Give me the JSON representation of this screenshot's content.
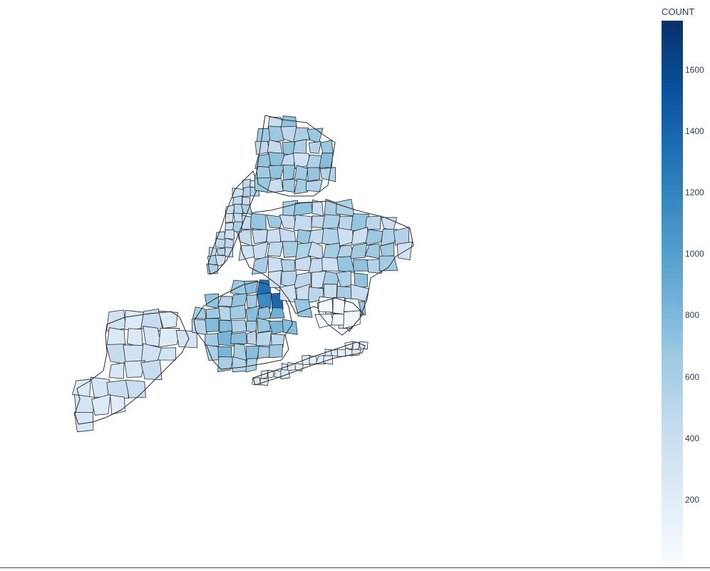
{
  "colorbar": {
    "title": "COUNT",
    "ticks": [
      {
        "label": "1600",
        "value": 1600
      },
      {
        "label": "1400",
        "value": 1400
      },
      {
        "label": "1200",
        "value": 1200
      },
      {
        "label": "1000",
        "value": 1000
      },
      {
        "label": "800",
        "value": 800
      },
      {
        "label": "600",
        "value": 600
      },
      {
        "label": "400",
        "value": 400
      },
      {
        "label": "200",
        "value": 200
      }
    ],
    "min": 0,
    "max": 1760,
    "colorscale": [
      "#f7fbff",
      "#deebf7",
      "#c6dbef",
      "#9ecae1",
      "#6baed6",
      "#4292c6",
      "#2171b5",
      "#08519c",
      "#08306b"
    ]
  },
  "map": {
    "region": "New York City zip codes",
    "border_color": "#2a2a2a"
  }
}
